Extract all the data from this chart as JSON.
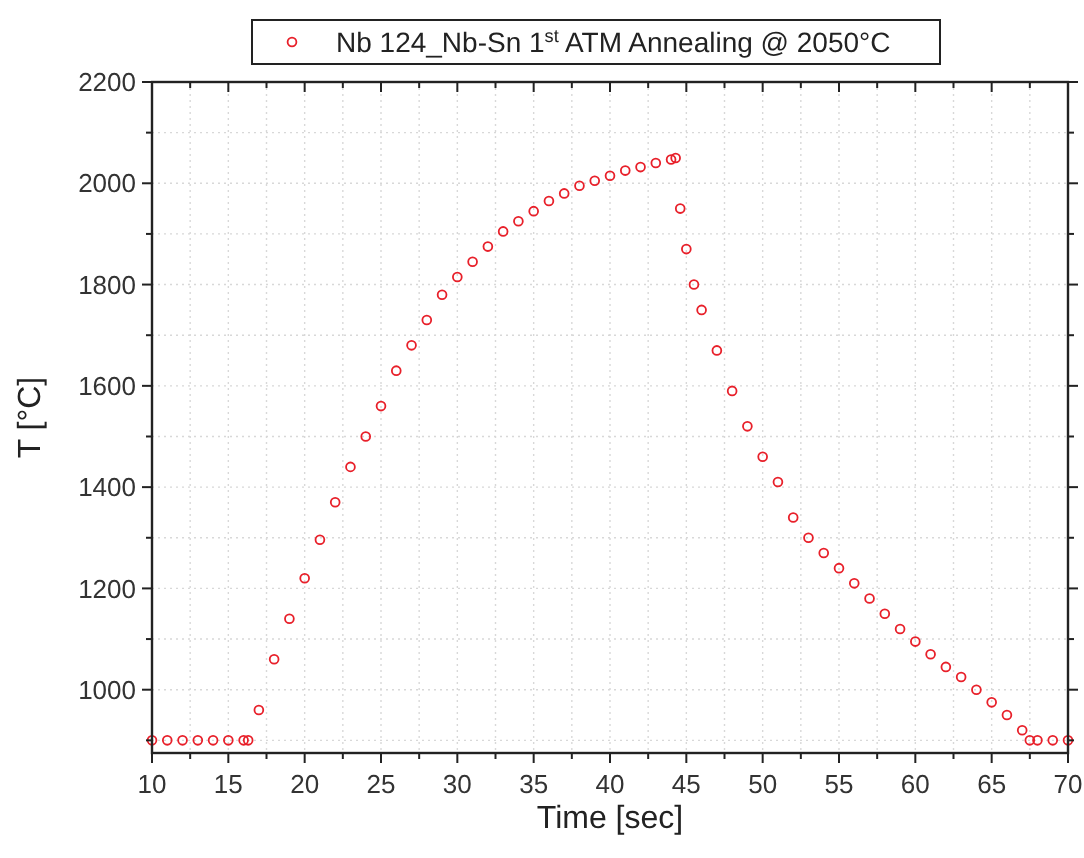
{
  "chart_data": {
    "type": "scatter",
    "xlabel": "Time [sec]",
    "ylabel": "T [°C]",
    "xlim": [
      10,
      70
    ],
    "ylim": [
      875,
      2200
    ],
    "xticks": [
      10,
      {
        "value": 12.5,
        "label": null
      },
      15,
      {
        "value": 17.5,
        "label": null
      },
      20,
      {
        "value": 22.5,
        "label": null
      },
      25,
      {
        "value": 27.5,
        "label": null
      },
      30,
      {
        "value": 32.5,
        "label": null
      },
      35,
      {
        "value": 37.5,
        "label": null
      },
      40,
      {
        "value": 42.5,
        "label": null
      },
      45,
      {
        "value": 47.5,
        "label": null
      },
      50,
      {
        "value": 52.5,
        "label": null
      },
      55,
      {
        "value": 57.5,
        "label": null
      },
      60,
      {
        "value": 62.5,
        "label": null
      },
      65,
      {
        "value": 67.5,
        "label": null
      },
      70
    ],
    "yticks": [
      {
        "value": 900,
        "label": null
      },
      1000,
      {
        "value": 1100,
        "label": null
      },
      1200,
      {
        "value": 1300,
        "label": null
      },
      1400,
      {
        "value": 1500,
        "label": null
      },
      1600,
      {
        "value": 1700,
        "label": null
      },
      1800,
      {
        "value": 1900,
        "label": null
      },
      2000,
      {
        "value": 2100,
        "label": null
      },
      2200
    ],
    "grid": true,
    "legend": "top",
    "marker": "circle",
    "series": [
      {
        "name": "Nb 124_Nb-Sn 1$^{st}$ ATM Annealing @ 2050°C",
        "color": "#e8202a",
        "x": [
          10,
          11,
          12,
          13,
          14,
          15,
          16,
          16.3,
          17,
          18,
          19,
          20,
          21,
          22,
          23,
          24,
          25,
          26,
          27,
          28,
          29,
          30,
          31,
          32,
          33,
          34,
          35,
          36,
          37,
          38,
          39,
          40,
          41,
          42,
          43,
          44,
          44.3,
          44.6,
          45,
          45.5,
          46,
          47,
          48,
          49,
          50,
          51,
          52,
          53,
          54,
          55,
          56,
          57,
          58,
          59,
          60,
          61,
          62,
          63,
          64,
          65,
          66,
          67,
          67.5,
          68,
          69,
          70
        ],
        "values": [
          900,
          900,
          900,
          900,
          900,
          900,
          900,
          900,
          960,
          1060,
          1140,
          1220,
          1296,
          1370,
          1440,
          1500,
          1560,
          1630,
          1680,
          1730,
          1780,
          1815,
          1845,
          1875,
          1905,
          1925,
          1945,
          1965,
          1980,
          1995,
          2005,
          2015,
          2025,
          2032,
          2040,
          2047,
          2050,
          1950,
          1870,
          1800,
          1750,
          1670,
          1590,
          1520,
          1460,
          1410,
          1340,
          1300,
          1270,
          1240,
          1210,
          1180,
          1150,
          1120,
          1095,
          1070,
          1045,
          1025,
          1000,
          975,
          950,
          920,
          900,
          900,
          900,
          900
        ]
      }
    ]
  }
}
